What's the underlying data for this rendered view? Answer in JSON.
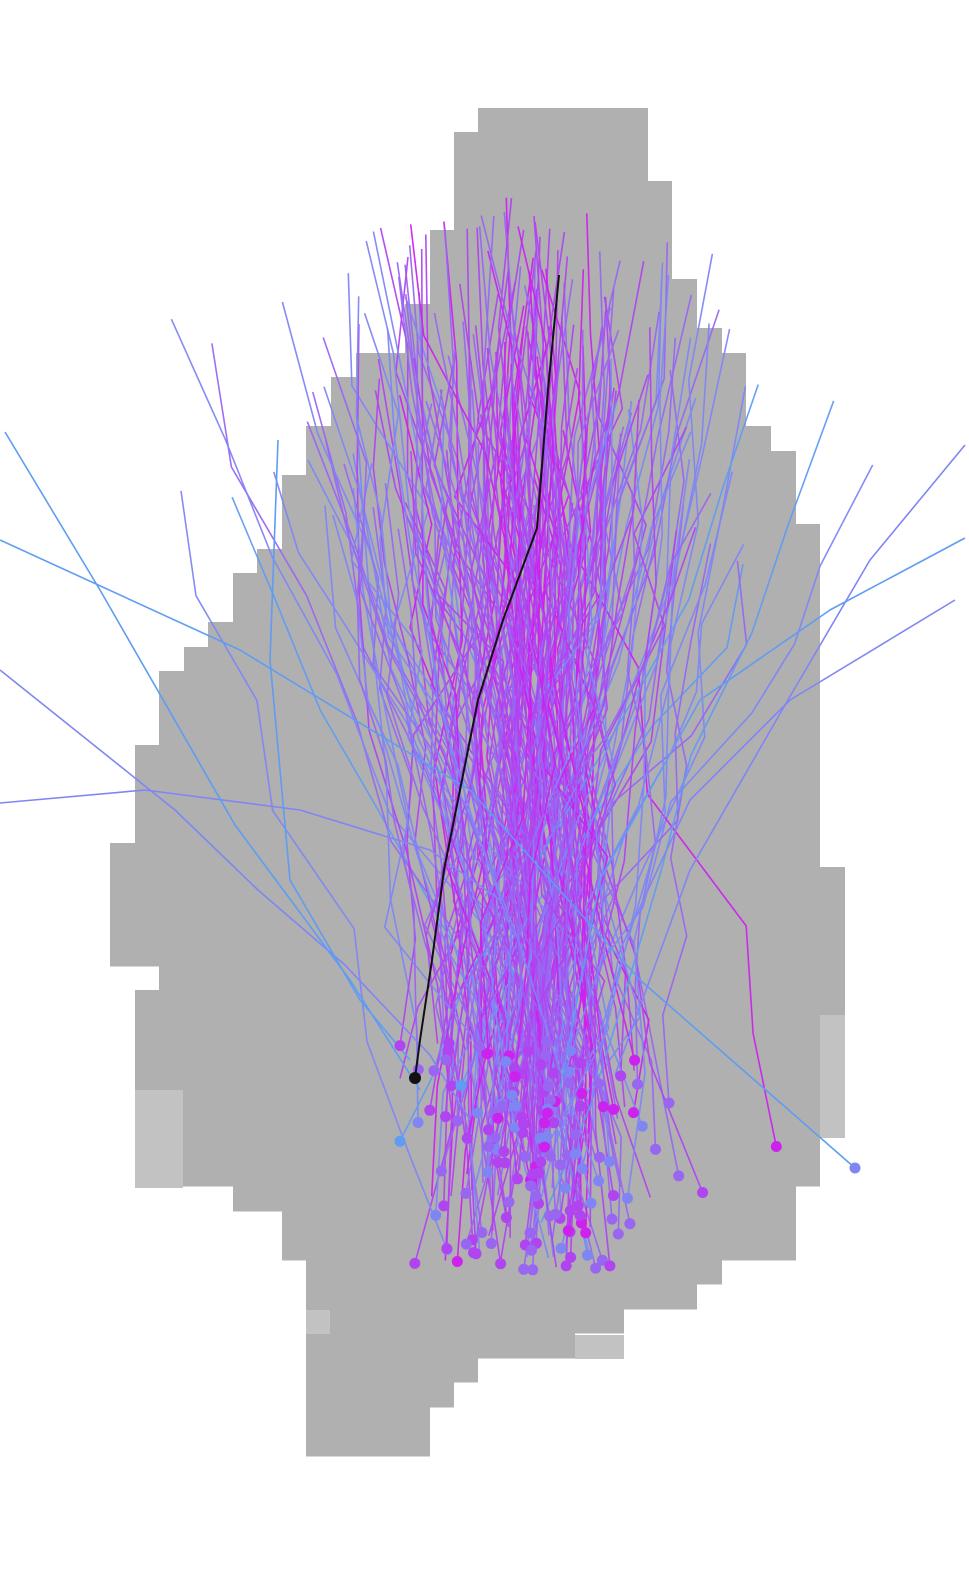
{
  "figure": {
    "background": "#ffffff",
    "region_color": "#b0b0b0",
    "region_light_color": "#c2c2c2",
    "trajectory_palette": [
      "#cc22ee",
      "#b044f0",
      "#9966f2",
      "#7f86f4",
      "#5f9cf2"
    ],
    "highlight_color": "#111111",
    "trajectory_count": 230,
    "highlighted_trajectory_count": 1
  }
}
